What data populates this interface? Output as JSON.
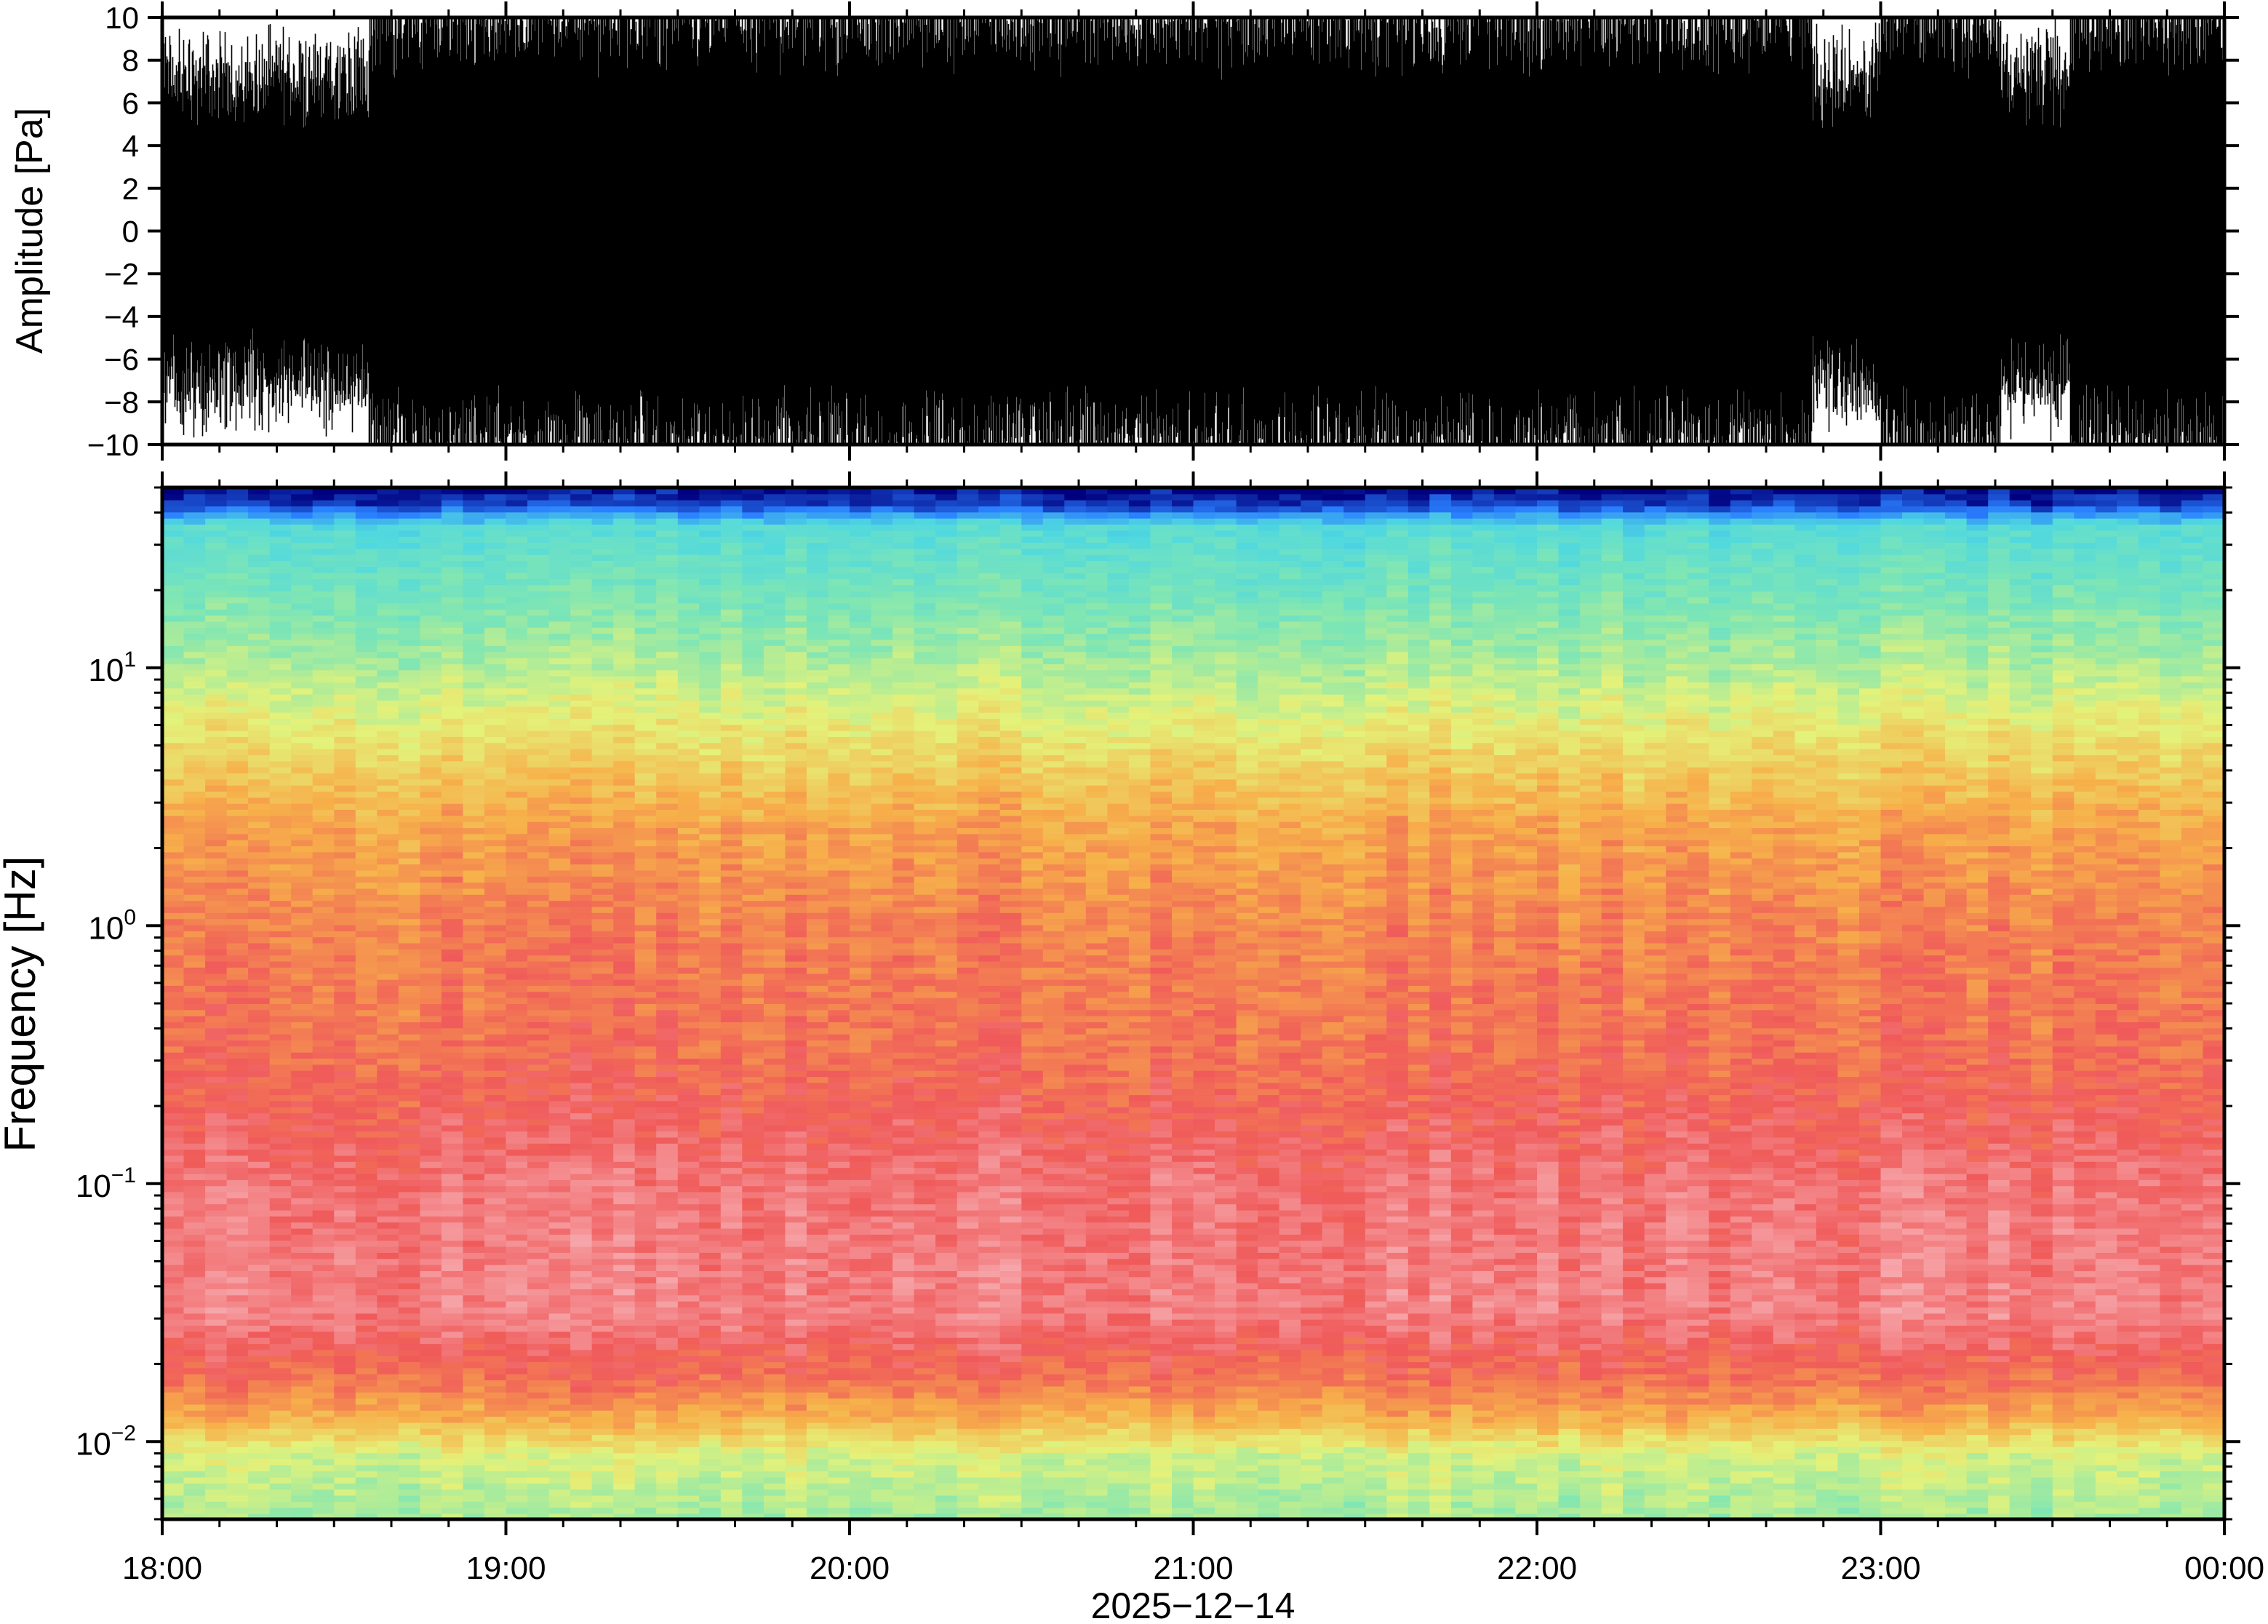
{
  "chart_data": [
    {
      "type": "line",
      "ylabel": "Amplitude [Pa]",
      "ylim": [
        -10,
        10
      ],
      "yticks": [
        10,
        8,
        6,
        4,
        2,
        0,
        -2,
        -4,
        -6,
        -8,
        -10
      ],
      "ytick_labels": [
        "10",
        "8",
        "6",
        "4",
        "2",
        "0",
        "−2",
        "−4",
        "−6",
        "−8",
        "−10"
      ],
      "xlim_hours": [
        18,
        24
      ],
      "series_color": "#000000",
      "quiet_periods_hours": [
        [
          18.0,
          18.6
        ],
        [
          22.8,
          23.0
        ],
        [
          23.35,
          23.55
        ]
      ],
      "notes": "waveform dense black trace clipped at ±10 Pa"
    },
    {
      "type": "heatmap",
      "ylabel": "Frequency [Hz]",
      "yscale": "log",
      "ylim": [
        0.005,
        50
      ],
      "yticks": [
        0.01,
        0.1,
        1,
        10
      ],
      "ytick_labels": [
        {
          "base": "10",
          "exp": "−2"
        },
        {
          "base": "10",
          "exp": "−1"
        },
        {
          "base": "10",
          "exp": "0"
        },
        {
          "base": "10",
          "exp": "1"
        }
      ],
      "xlim_hours": [
        18,
        24
      ],
      "colormap": [
        "#00007f",
        "#2a7fff",
        "#4fd8e0",
        "#7fe6b4",
        "#e4f27a",
        "#f7b04a",
        "#f05a5a",
        "#f7b3b8"
      ]
    }
  ],
  "xaxis": {
    "ticks_hours": [
      18,
      19,
      20,
      21,
      22,
      23,
      24
    ],
    "tick_labels": [
      "18:00",
      "19:00",
      "20:00",
      "21:00",
      "22:00",
      "23:00",
      "00:00"
    ],
    "date_label": "2025−12−14"
  }
}
